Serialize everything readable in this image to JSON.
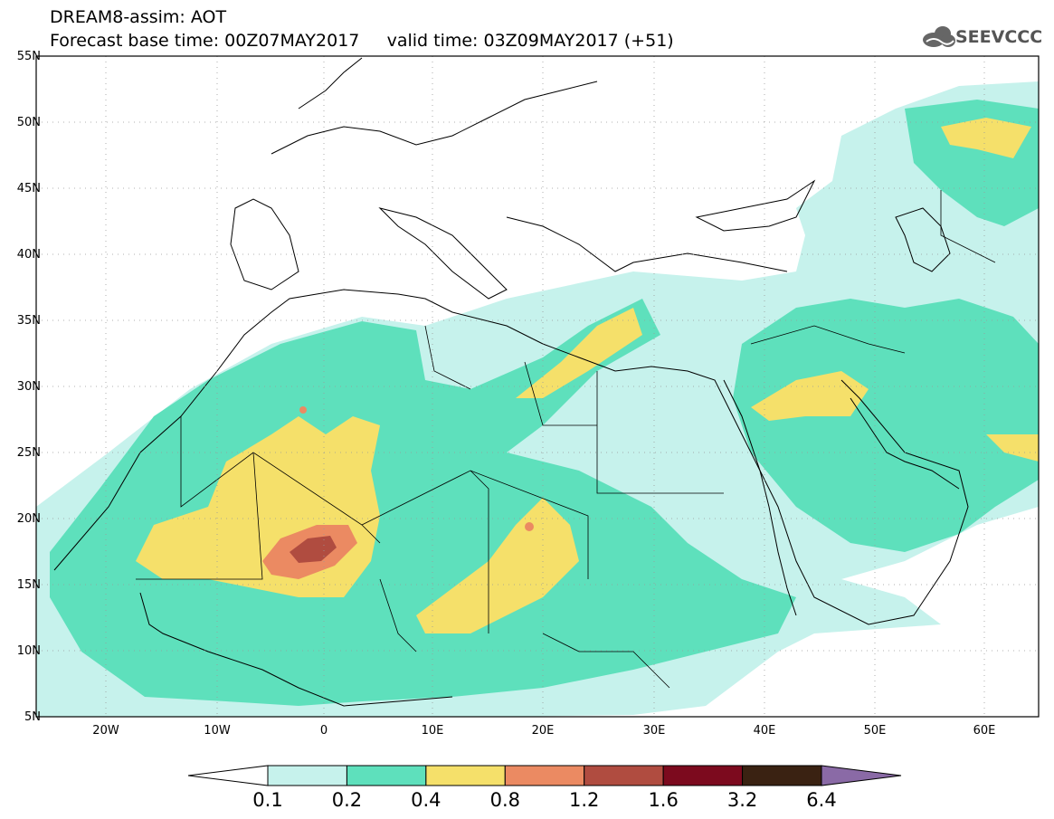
{
  "header": {
    "title_line1": "DREAM8-assim: AOT",
    "title_line2": "Forecast base time: 00Z07MAY2017     valid time: 03Z09MAY2017 (+51)",
    "logo_text": "SEEVCCC",
    "logo_icon": "cloud-icon"
  },
  "map": {
    "projection": "lat-lon",
    "extent": {
      "lon": [
        -25,
        65
      ],
      "lat": [
        5,
        55
      ]
    },
    "grid": "dotted",
    "lat_labels": [
      "55N",
      "50N",
      "45N",
      "40N",
      "35N",
      "30N",
      "25N",
      "20N",
      "15N",
      "10N",
      "5N"
    ],
    "lon_labels": [
      "20W",
      "10W",
      "0",
      "10E",
      "20E",
      "30E",
      "40E",
      "50E",
      "60E"
    ],
    "variable": "Aerosol Optical Thickness"
  },
  "colorbar": {
    "levels": [
      "0.1",
      "0.2",
      "0.4",
      "0.8",
      "1.2",
      "1.6",
      "3.2",
      "6.4"
    ],
    "colors": [
      "#ffffff",
      "#c6f2ec",
      "#5ee0bc",
      "#f5e06a",
      "#eb8a62",
      "#b04c40",
      "#7c0a1e",
      "#3a2212",
      "#8a6aa6"
    ],
    "extend": "both"
  }
}
